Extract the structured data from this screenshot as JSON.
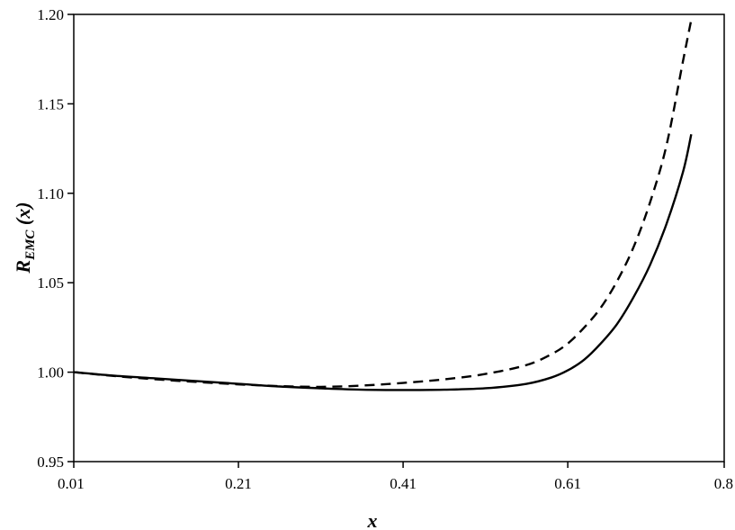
{
  "chart_data": {
    "type": "line",
    "xlabel": "x",
    "ylabel": {
      "main": "R",
      "subscript": "EMC",
      "suffix": " (x)"
    },
    "xlim": [
      0.01,
      0.8
    ],
    "ylim": [
      0.95,
      1.2
    ],
    "x_ticks": [
      "0.01",
      "0.21",
      "0.41",
      "0.61",
      "0.8"
    ],
    "y_ticks": [
      "0.95",
      "1.00",
      "1.05",
      "1.10",
      "1.15",
      "1.20"
    ],
    "grid": false,
    "series": [
      {
        "style": "solid",
        "color": "#000000",
        "x": [
          0.01,
          0.06,
          0.11,
          0.16,
          0.21,
          0.26,
          0.31,
          0.36,
          0.41,
          0.46,
          0.51,
          0.56,
          0.59,
          0.61,
          0.63,
          0.65,
          0.67,
          0.69,
          0.71,
          0.73,
          0.75,
          0.76
        ],
        "y": [
          1.0,
          0.998,
          0.9965,
          0.995,
          0.9935,
          0.992,
          0.991,
          0.9902,
          0.99,
          0.9902,
          0.991,
          0.9935,
          0.997,
          1.001,
          1.007,
          1.016,
          1.027,
          1.042,
          1.06,
          1.083,
          1.112,
          1.133
        ]
      },
      {
        "style": "dashed",
        "color": "#000000",
        "x": [
          0.01,
          0.06,
          0.11,
          0.16,
          0.21,
          0.26,
          0.31,
          0.36,
          0.41,
          0.46,
          0.51,
          0.56,
          0.59,
          0.61,
          0.63,
          0.65,
          0.67,
          0.69,
          0.71,
          0.73,
          0.75,
          0.76
        ],
        "y": [
          1.0,
          0.9978,
          0.996,
          0.9945,
          0.9932,
          0.9922,
          0.9918,
          0.9925,
          0.994,
          0.996,
          0.999,
          1.004,
          1.01,
          1.016,
          1.025,
          1.036,
          1.051,
          1.07,
          1.095,
          1.127,
          1.174,
          1.197
        ]
      }
    ]
  }
}
